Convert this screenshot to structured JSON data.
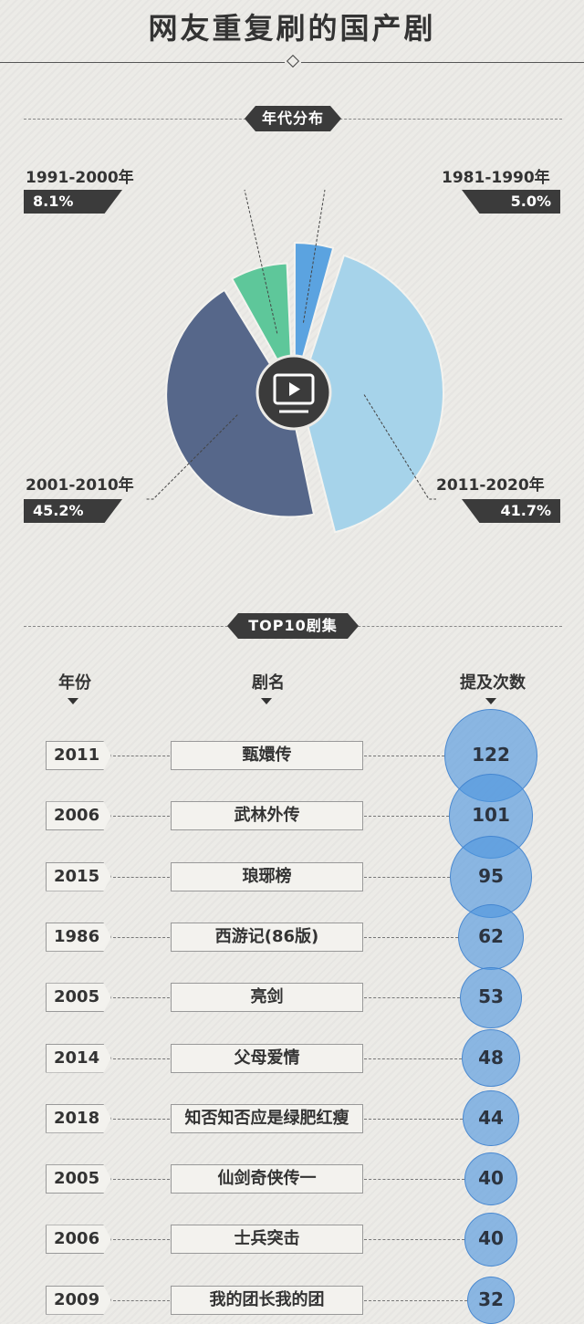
{
  "title": "网友重复刷的国产剧",
  "sections": {
    "decade": "年代分布",
    "top10": "TOP10剧集"
  },
  "columns": {
    "year": "年份",
    "name": "剧名",
    "count": "提及次数"
  },
  "colors": {
    "1981-1990": "#5ba3e0",
    "1991-2000": "#5ec79a",
    "2001-2010": "#56678a",
    "2011-2020": "#a6d3ea",
    "center": "#3b3b3b",
    "bubble": "#4d96de"
  },
  "center_icon": "tv-play-icon",
  "chart_data": [
    {
      "type": "pie",
      "categories": [
        "1981-1990年",
        "1991-2000年",
        "2001-2010年",
        "2011-2020年"
      ],
      "values": [
        5.0,
        8.1,
        45.2,
        41.7
      ],
      "value_labels": [
        "5.0%",
        "8.1%",
        "45.2%",
        "41.7%"
      ],
      "unit": "%"
    },
    {
      "type": "bubble",
      "rows": [
        {
          "year": "2011",
          "name": "甄嬛传",
          "count": 122
        },
        {
          "year": "2006",
          "name": "武林外传",
          "count": 101
        },
        {
          "year": "2015",
          "name": "琅琊榜",
          "count": 95
        },
        {
          "year": "1986",
          "name": "西游记(86版)",
          "count": 62
        },
        {
          "year": "2005",
          "name": "亮剑",
          "count": 53
        },
        {
          "year": "2014",
          "name": "父母爱情",
          "count": 48
        },
        {
          "year": "2018",
          "name": "知否知否应是绿肥红瘦",
          "count": 44
        },
        {
          "year": "2005",
          "name": "仙剑奇侠传一",
          "count": 40
        },
        {
          "year": "2006",
          "name": "士兵突击",
          "count": 40
        },
        {
          "year": "2009",
          "name": "我的团长我的团",
          "count": 32
        }
      ]
    }
  ]
}
